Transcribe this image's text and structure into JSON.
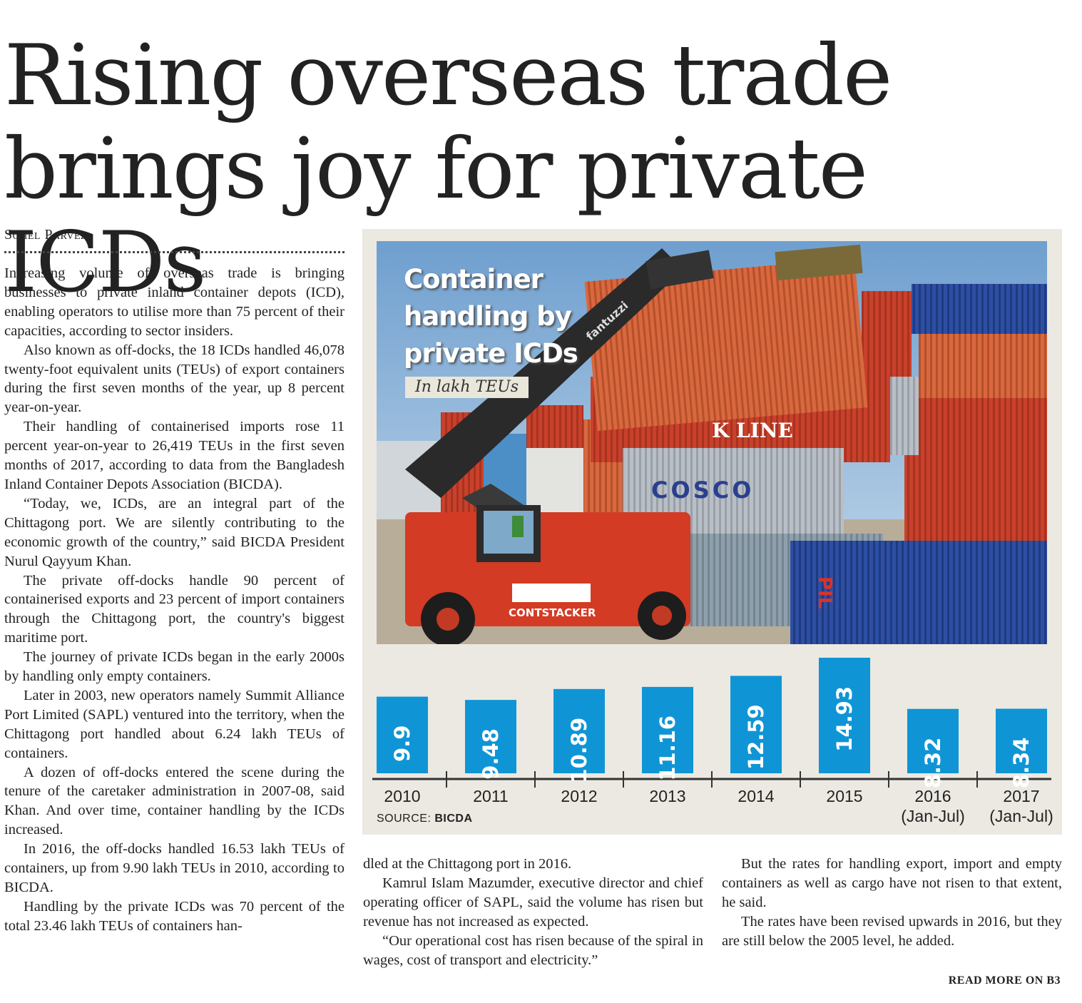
{
  "article": {
    "headline": "Rising overseas trade brings joy for private ICDs",
    "byline": "Sohel Parvez",
    "read_more": "READ MORE ON B3",
    "col1": [
      "Increasing volume of overseas trade is bringing businesses to private inland container depots (ICD), enabling operators to utilise more than 75 percent of their capacities, according to sector insiders.",
      "Also known as off-docks, the 18 ICDs handled 46,078 twenty-foot equivalent units (TEUs) of export containers during the first seven months of the year, up 8 percent year-on-year.",
      "Their handling of containerised imports rose 11 percent year-on-year to 26,419 TEUs in the first seven months of 2017, according to data from the Bangladesh Inland Container Depots Association (BICDA).",
      "“Today, we, ICDs, are an integral part of the Chittagong port. We are silently contributing to the economic growth of the country,” said BICDA President Nurul Qayyum Khan.",
      "The private off-docks handle 90 percent of containerised exports and 23 percent of import containers through the Chittagong port, the country's biggest maritime port.",
      "The journey of private ICDs began in the early 2000s by handling only empty containers.",
      "Later in 2003, new operators namely Summit Alliance Port Limited (SAPL) ventured into the territory, when the Chittagong port handled about 6.24 lakh TEUs of containers.",
      "A dozen of off-docks entered the scene during the tenure of the caretaker administration in 2007-08, said Khan. And over time, container handling by the ICDs increased.",
      "In 2016, the off-docks handled 16.53 lakh TEUs of containers, up from 9.90 lakh TEUs in 2010, according to BICDA.",
      "Handling by the private ICDs was 70 percent of the total 23.46 lakh TEUs of containers han-"
    ],
    "col2": [
      "dled at the Chittagong port in 2016.",
      "Kamrul Islam Mazumder, executive director and chief operating officer of SAPL, said the volume has risen but revenue has not increased as expected.",
      "“Our operational cost has risen because of the spiral in wages, cost of transport and electricity.”"
    ],
    "col3": [
      "But the rates for handling export, import and empty containers as well as cargo have not risen to that extent, he said.",
      "The rates have been revised upwards in 2016, but they are still below the 2005 level, he added."
    ]
  },
  "graphic": {
    "title_lines": [
      "Container",
      "handling by",
      "private ICDs"
    ],
    "subtitle": "In lakh TEUs",
    "source_label": "SOURCE:",
    "source_value": "BICDA",
    "photo_labels": {
      "kline": "K LINE",
      "cosco": "COSCO",
      "contstacker": "CONTSTACKER",
      "pil": "PIL",
      "brand": "fantuzzi"
    }
  },
  "chart_data": {
    "type": "bar",
    "title": "Container handling by private ICDs",
    "ylabel": "In lakh TEUs",
    "categories": [
      "2010",
      "2011",
      "2012",
      "2013",
      "2014",
      "2015",
      "2016\n(Jan-Jul)",
      "2017\n(Jan-Jul)"
    ],
    "category_lines": [
      [
        "2010"
      ],
      [
        "2011"
      ],
      [
        "2012"
      ],
      [
        "2013"
      ],
      [
        "2014"
      ],
      [
        "2015"
      ],
      [
        "2016",
        "(Jan-Jul)"
      ],
      [
        "2017",
        "(Jan-Jul)"
      ]
    ],
    "values": [
      9.9,
      9.48,
      10.89,
      11.16,
      12.59,
      14.93,
      8.32,
      8.34
    ],
    "value_labels": [
      "9.9",
      "9.48",
      "10.89",
      "11.16",
      "12.59",
      "14.93",
      "8.32",
      "8.34"
    ],
    "bar_color": "#0f95d6",
    "source": "BICDA"
  }
}
